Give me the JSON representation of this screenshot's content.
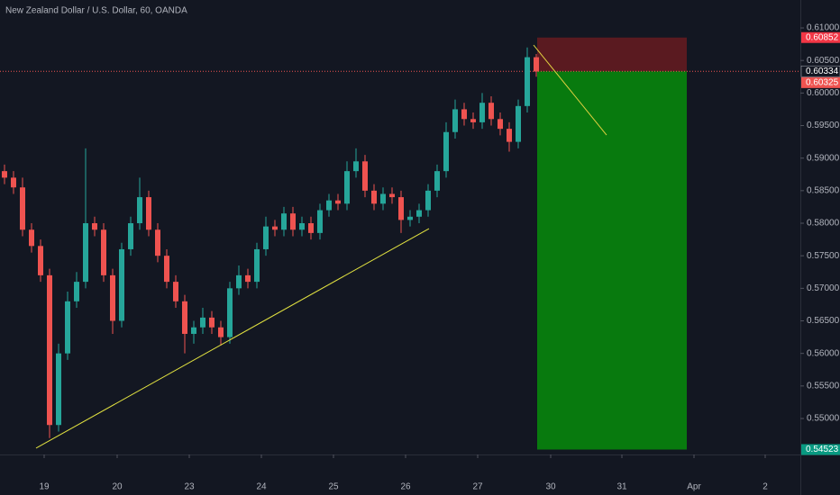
{
  "chart_data": {
    "type": "candlestick",
    "title": "New Zealand Dollar / U.S. Dollar, 60, OANDA",
    "x": [
      0,
      1,
      2,
      3,
      4,
      5,
      6,
      7,
      8,
      9,
      10,
      11,
      12,
      13,
      14,
      15,
      16,
      17,
      18,
      19,
      20,
      21,
      22,
      23,
      24,
      25,
      26,
      27,
      28,
      29,
      30,
      31,
      32,
      33,
      34,
      35,
      36,
      37,
      38,
      39,
      40,
      41,
      42,
      43,
      44,
      45,
      46,
      47,
      48,
      49,
      50,
      51,
      52,
      53,
      54,
      55,
      56,
      57,
      58,
      59
    ],
    "open": [
      0.588,
      0.587,
      0.5855,
      0.579,
      0.5765,
      0.572,
      0.549,
      0.56,
      0.568,
      0.571,
      0.58,
      0.579,
      0.572,
      0.565,
      0.576,
      0.58,
      0.584,
      0.579,
      0.575,
      0.571,
      0.568,
      0.563,
      0.564,
      0.5655,
      0.564,
      0.5625,
      0.57,
      0.572,
      0.571,
      0.576,
      0.5795,
      0.579,
      0.5815,
      0.579,
      0.58,
      0.5785,
      0.582,
      0.5835,
      0.583,
      0.588,
      0.5895,
      0.585,
      0.583,
      0.5845,
      0.584,
      0.5805,
      0.581,
      0.582,
      0.585,
      0.588,
      0.594,
      0.5975,
      0.596,
      0.5955,
      0.5985,
      0.596,
      0.5945,
      0.5925,
      0.598,
      0.6055
    ],
    "high": [
      0.589,
      0.588,
      0.587,
      0.58,
      0.5775,
      0.573,
      0.5615,
      0.5695,
      0.5725,
      0.5915,
      0.581,
      0.58,
      0.573,
      0.577,
      0.581,
      0.587,
      0.585,
      0.58,
      0.576,
      0.572,
      0.569,
      0.565,
      0.567,
      0.5665,
      0.565,
      0.571,
      0.5735,
      0.573,
      0.577,
      0.581,
      0.5805,
      0.5825,
      0.5825,
      0.581,
      0.581,
      0.583,
      0.5845,
      0.5845,
      0.5895,
      0.5915,
      0.5905,
      0.586,
      0.5855,
      0.5855,
      0.585,
      0.582,
      0.583,
      0.586,
      0.589,
      0.5955,
      0.599,
      0.5985,
      0.597,
      0.6,
      0.5995,
      0.597,
      0.5955,
      0.599,
      0.607,
      0.606
    ],
    "low": [
      0.586,
      0.5845,
      0.578,
      0.5755,
      0.571,
      0.547,
      0.548,
      0.559,
      0.567,
      0.57,
      0.578,
      0.571,
      0.563,
      0.564,
      0.575,
      0.579,
      0.578,
      0.574,
      0.57,
      0.567,
      0.56,
      0.5615,
      0.563,
      0.563,
      0.5612,
      0.5615,
      0.569,
      0.57,
      0.57,
      0.575,
      0.578,
      0.578,
      0.578,
      0.578,
      0.5775,
      0.5775,
      0.581,
      0.582,
      0.582,
      0.587,
      0.584,
      0.582,
      0.582,
      0.583,
      0.5785,
      0.5795,
      0.58,
      0.581,
      0.584,
      0.587,
      0.593,
      0.595,
      0.5945,
      0.5945,
      0.595,
      0.5935,
      0.591,
      0.5915,
      0.597,
      0.6025
    ],
    "close": [
      0.587,
      0.5855,
      0.579,
      0.5765,
      0.572,
      0.549,
      0.56,
      0.568,
      0.571,
      0.58,
      0.579,
      0.572,
      0.565,
      0.576,
      0.58,
      0.584,
      0.579,
      0.575,
      0.571,
      0.568,
      0.563,
      0.564,
      0.5655,
      0.564,
      0.5625,
      0.57,
      0.572,
      0.571,
      0.576,
      0.5795,
      0.579,
      0.5815,
      0.579,
      0.58,
      0.5785,
      0.582,
      0.5835,
      0.583,
      0.588,
      0.5895,
      0.585,
      0.583,
      0.5845,
      0.584,
      0.5805,
      0.581,
      0.582,
      0.585,
      0.588,
      0.594,
      0.5975,
      0.596,
      0.5955,
      0.5985,
      0.596,
      0.5945,
      0.5925,
      0.598,
      0.6055,
      0.6033
    ],
    "up_color": "#26a69a",
    "down_color": "#ef5350",
    "xlim": [
      -0.5,
      88.3
    ],
    "ylim": [
      0.54447,
      0.61429
    ],
    "xticks": [
      {
        "value": 4.4,
        "label": "19"
      },
      {
        "value": 12.5,
        "label": "20"
      },
      {
        "value": 20.5,
        "label": "23"
      },
      {
        "value": 28.5,
        "label": "24"
      },
      {
        "value": 36.5,
        "label": "25"
      },
      {
        "value": 44.5,
        "label": "26"
      },
      {
        "value": 52.5,
        "label": "27"
      },
      {
        "value": 60.6,
        "label": "30"
      },
      {
        "value": 68.5,
        "label": "31"
      },
      {
        "value": 76.5,
        "label": "Apr"
      },
      {
        "value": 84.4,
        "label": "2"
      }
    ],
    "yticks": [
      {
        "value": 0.55,
        "label": "0.55000"
      },
      {
        "value": 0.555,
        "label": "0.55500"
      },
      {
        "value": 0.56,
        "label": "0.56000"
      },
      {
        "value": 0.565,
        "label": "0.56500"
      },
      {
        "value": 0.57,
        "label": "0.57000"
      },
      {
        "value": 0.575,
        "label": "0.57500"
      },
      {
        "value": 0.58,
        "label": "0.58000"
      },
      {
        "value": 0.585,
        "label": "0.58500"
      },
      {
        "value": 0.59,
        "label": "0.59000"
      },
      {
        "value": 0.595,
        "label": "0.59500"
      },
      {
        "value": 0.6,
        "label": "0.60000"
      },
      {
        "value": 0.605,
        "label": "0.60500"
      },
      {
        "value": 0.61,
        "label": "0.61000"
      }
    ],
    "price_tags": [
      {
        "value": 0.60852,
        "label": "0.60852",
        "color": "#f23645"
      },
      {
        "value": 0.60334,
        "label": "0.60334",
        "color": "#131722"
      },
      {
        "value": 0.60325,
        "label": "0.60325",
        "color": "#ef5350"
      },
      {
        "value": 0.54523,
        "label": "0.54523",
        "color": "#089981"
      }
    ],
    "position": {
      "x": [
        59.1,
        75.7
      ],
      "stop_color": "#5a1a20",
      "target_color": "#087a0e"
    },
    "drawings": [
      {
        "color": "#e0e040",
        "x": [
          3.5,
          47.1
        ],
        "y": [
          0.54544,
          0.57917
        ]
      },
      {
        "color": "#e0d040",
        "x": [
          58.7,
          66.8
        ],
        "y": [
          0.60737,
          0.59355
        ]
      }
    ]
  }
}
